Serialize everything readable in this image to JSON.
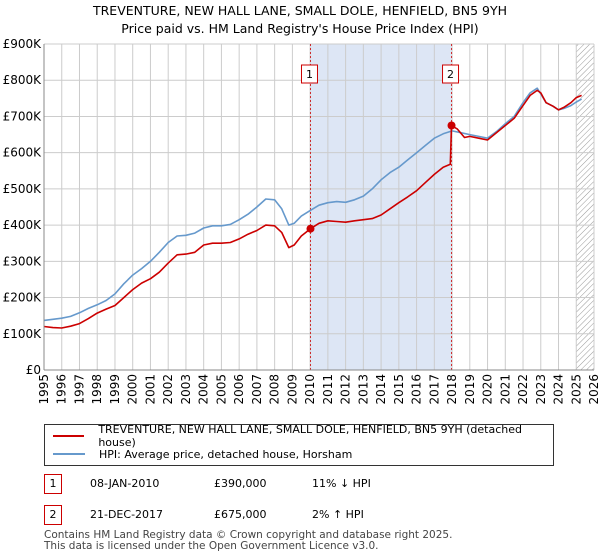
{
  "title_line1": "TREVENTURE, NEW HALL LANE, SMALL DOLE, HENFIELD, BN5 9YH",
  "title_line2": "Price paid vs. HM Land Registry's House Price Index (HPI)",
  "colors": {
    "property": "#cc0000",
    "hpi": "#6699cc",
    "shade": "#dde6f5",
    "marker": "#cc0000"
  },
  "legend": {
    "property_label": "TREVENTURE, NEW HALL LANE, SMALL DOLE, HENFIELD, BN5 9YH (detached house)",
    "hpi_label": "HPI: Average price, detached house, Horsham"
  },
  "transactions": [
    {
      "id": "1",
      "date": "08-JAN-2010",
      "price": "£390,000",
      "hpi_diff": "11% ↓ HPI"
    },
    {
      "id": "2",
      "date": "21-DEC-2017",
      "price": "£675,000",
      "hpi_diff": "2% ↑ HPI"
    }
  ],
  "footer": {
    "line1": "Contains HM Land Registry data © Crown copyright and database right 2025.",
    "line2": "This data is licensed under the Open Government Licence v3.0."
  },
  "chart_data": {
    "type": "line",
    "title": "TREVENTURE, NEW HALL LANE, SMALL DOLE, HENFIELD, BN5 9YH — Price paid vs. HM Land Registry's House Price Index (HPI)",
    "xlabel": "",
    "ylabel": "",
    "xlim": [
      1995,
      2026
    ],
    "ylim": [
      0,
      900000
    ],
    "x_ticks": [
      1995,
      1996,
      1997,
      1998,
      1999,
      2000,
      2001,
      2002,
      2003,
      2004,
      2005,
      2006,
      2007,
      2008,
      2009,
      2010,
      2011,
      2012,
      2013,
      2014,
      2015,
      2016,
      2017,
      2018,
      2019,
      2020,
      2021,
      2022,
      2023,
      2024,
      2025,
      2026
    ],
    "y_ticks": [
      0,
      100000,
      200000,
      300000,
      400000,
      500000,
      600000,
      700000,
      800000,
      900000
    ],
    "y_tick_labels": [
      "£0",
      "£100K",
      "£200K",
      "£300K",
      "£400K",
      "£500K",
      "£600K",
      "£700K",
      "£800K",
      "£900K"
    ],
    "grid": true,
    "shaded_ranges": [
      [
        2010.02,
        2017.97
      ]
    ],
    "hatched_from": 2025.0,
    "series": [
      {
        "name": "TREVENTURE, NEW HALL LANE, SMALL DOLE, HENFIELD, BN5 9YH (detached house)",
        "x": [
          1995,
          1995.5,
          1996,
          1996.5,
          1997,
          1997.5,
          1998,
          1998.5,
          1999,
          1999.5,
          2000,
          2000.5,
          2001,
          2001.5,
          2002,
          2002.5,
          2003,
          2003.5,
          2004,
          2004.5,
          2005,
          2005.5,
          2006,
          2006.5,
          2007,
          2007.5,
          2008,
          2008.4,
          2008.8,
          2009.1,
          2009.5,
          2010.02,
          2010.5,
          2011,
          2011.5,
          2012,
          2012.5,
          2013,
          2013.5,
          2014,
          2014.5,
          2015,
          2015.5,
          2016,
          2016.5,
          2017,
          2017.5,
          2017.9,
          2017.97,
          2018.3,
          2018.7,
          2019,
          2019.5,
          2020,
          2020.5,
          2021,
          2021.5,
          2022,
          2022.4,
          2022.8,
          2023,
          2023.3,
          2023.7,
          2024,
          2024.3,
          2024.7,
          2025,
          2025.3
        ],
        "values": [
          120000,
          117000,
          116000,
          121000,
          128000,
          142000,
          157000,
          168000,
          178000,
          200000,
          222000,
          240000,
          252000,
          270000,
          295000,
          318000,
          320000,
          325000,
          345000,
          350000,
          350000,
          352000,
          362000,
          375000,
          385000,
          400000,
          398000,
          380000,
          338000,
          345000,
          370000,
          390000,
          405000,
          412000,
          410000,
          408000,
          412000,
          415000,
          418000,
          428000,
          445000,
          462000,
          478000,
          495000,
          518000,
          540000,
          560000,
          568000,
          675000,
          665000,
          642000,
          645000,
          640000,
          635000,
          655000,
          675000,
          695000,
          730000,
          758000,
          772000,
          765000,
          738000,
          728000,
          718000,
          725000,
          738000,
          752000,
          758000
        ]
      },
      {
        "name": "HPI: Average price, detached house, Horsham",
        "x": [
          1995,
          1995.5,
          1996,
          1996.5,
          1997,
          1997.5,
          1998,
          1998.5,
          1999,
          1999.5,
          2000,
          2000.5,
          2001,
          2001.5,
          2002,
          2002.5,
          2003,
          2003.5,
          2004,
          2004.5,
          2005,
          2005.5,
          2006,
          2006.5,
          2007,
          2007.5,
          2008,
          2008.4,
          2008.8,
          2009.1,
          2009.5,
          2010,
          2010.5,
          2011,
          2011.5,
          2012,
          2012.5,
          2013,
          2013.5,
          2014,
          2014.5,
          2015,
          2015.5,
          2016,
          2016.5,
          2017,
          2017.5,
          2018,
          2018.5,
          2019,
          2019.5,
          2020,
          2020.5,
          2021,
          2021.5,
          2022,
          2022.4,
          2022.8,
          2023,
          2023.3,
          2023.7,
          2024,
          2024.3,
          2024.7,
          2025,
          2025.3
        ],
        "values": [
          137000,
          140000,
          143000,
          148000,
          158000,
          170000,
          180000,
          192000,
          210000,
          238000,
          262000,
          280000,
          300000,
          325000,
          352000,
          370000,
          372000,
          378000,
          392000,
          398000,
          398000,
          402000,
          415000,
          430000,
          450000,
          472000,
          470000,
          445000,
          400000,
          405000,
          425000,
          440000,
          455000,
          462000,
          465000,
          463000,
          470000,
          480000,
          500000,
          525000,
          545000,
          560000,
          580000,
          600000,
          620000,
          640000,
          652000,
          660000,
          655000,
          650000,
          645000,
          640000,
          658000,
          680000,
          700000,
          738000,
          765000,
          778000,
          762000,
          738000,
          728000,
          718000,
          722000,
          730000,
          740000,
          748000
        ]
      }
    ],
    "markers": [
      {
        "label": "1",
        "x": 2010.02,
        "y": 390000
      },
      {
        "label": "2",
        "x": 2017.97,
        "y": 675000
      }
    ]
  }
}
